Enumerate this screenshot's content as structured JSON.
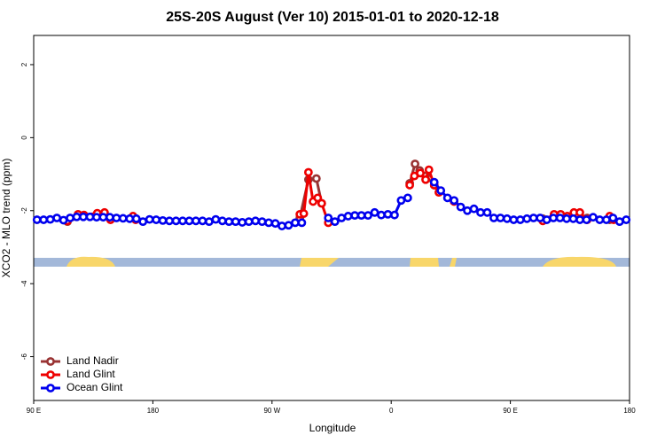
{
  "chart_data": {
    "type": "line",
    "title": "25S-20S August (Ver 10)   2015-01-01 to 2020-12-18",
    "x_label": "Longitude",
    "y_label": "XCO2 - MLO trend (ppm)",
    "xlim": [
      90,
      540
    ],
    "xticks": [
      {
        "value": 90,
        "label": "90 E"
      },
      180,
      {
        "value": 270,
        "label": "90 W"
      },
      {
        "value": 360,
        "label": "0"
      },
      {
        "value": 450,
        "label": "90 E"
      },
      {
        "value": 540,
        "label": "180"
      }
    ],
    "ylim": [
      -7.2,
      2.8
    ],
    "yticks": [
      2,
      0,
      -2,
      -4,
      -6
    ],
    "legend": "bottomleft",
    "series": [
      {
        "name": "Land Nadir",
        "color": "#993333",
        "x": [
          115.5,
          128,
          148,
          null,
          291,
          297.5,
          303.5,
          307.5,
          null,
          374,
          378,
          381.5,
          386,
          392.5,
          null,
          474.5,
          483,
          508,
          525
        ],
        "values": [
          -2.3,
          -2.15,
          -2.2,
          null,
          -2.2,
          -1.15,
          -1.12,
          -1.8,
          null,
          -1.25,
          -0.72,
          -0.9,
          -1.05,
          -1.3,
          null,
          -2.22,
          -2.15,
          -2.2,
          -2.25
        ]
      },
      {
        "name": "Land Glint",
        "color": "#ee0000",
        "x": [
          115.5,
          123.5,
          128,
          138,
          143.5,
          148,
          null,
          165,
          167,
          null,
          291,
          294,
          297.5,
          301,
          304.5,
          307.5,
          312.5,
          null,
          374,
          377.5,
          382,
          386,
          388.5,
          392.5,
          396,
          null,
          407.5,
          null,
          474.5,
          483,
          488,
          493,
          498,
          502.5,
          508,
          null,
          525,
          528
        ],
        "values": [
          -2.28,
          -2.1,
          -2.12,
          -2.07,
          -2.05,
          -2.25,
          null,
          -2.15,
          -2.25,
          null,
          -2.1,
          -2.08,
          -0.95,
          -1.75,
          -1.65,
          -1.8,
          -2.33,
          null,
          -1.3,
          -1.05,
          -0.97,
          -1.15,
          -0.88,
          -1.3,
          -1.5,
          null,
          -1.75,
          null,
          -2.28,
          -2.1,
          -2.1,
          -2.15,
          -2.05,
          -2.05,
          -2.25,
          null,
          -2.15,
          -2.25
        ]
      },
      {
        "name": "Ocean Glint",
        "color": "#0000ee",
        "x": [
          92.5,
          97.5,
          102.5,
          107.5,
          112.5,
          117.5,
          122.5,
          127.5,
          132.5,
          137.5,
          142.5,
          147.5,
          152.5,
          157.5,
          162.5,
          167.5,
          172.5,
          177.5,
          182.5,
          187.5,
          192.5,
          197.5,
          202.5,
          207.5,
          212.5,
          217.5,
          222.5,
          227.5,
          232.5,
          237.5,
          242.5,
          247.5,
          252.5,
          257.5,
          262.5,
          267.5,
          272.5,
          277.5,
          282.5,
          287.5,
          292.5,
          null,
          null,
          null,
          312.5,
          317.5,
          322.5,
          327.5,
          332.5,
          337.5,
          342.5,
          347.5,
          352.5,
          357.5,
          362.5,
          367.5,
          372.5,
          null,
          null,
          null,
          392.5,
          397.5,
          402.5,
          407.5,
          412.5,
          417.5,
          422.5,
          427.5,
          432.5,
          437.5,
          442.5,
          447.5,
          452.5,
          457.5,
          462.5,
          467.5,
          472.5,
          477.5,
          482.5,
          487.5,
          492.5,
          497.5,
          502.5,
          507.5,
          512.5,
          517.5,
          522.5,
          527.5,
          532.5,
          537.5
        ],
        "values": [
          -2.25,
          -2.25,
          -2.24,
          -2.2,
          -2.26,
          -2.2,
          -2.17,
          -2.17,
          -2.17,
          -2.18,
          -2.18,
          -2.18,
          -2.2,
          -2.21,
          -2.22,
          -2.22,
          -2.3,
          -2.24,
          -2.25,
          -2.27,
          -2.28,
          -2.28,
          -2.28,
          -2.28,
          -2.28,
          -2.28,
          -2.3,
          -2.24,
          -2.28,
          -2.3,
          -2.3,
          -2.32,
          -2.3,
          -2.28,
          -2.3,
          -2.33,
          -2.35,
          -2.42,
          -2.4,
          -2.33,
          -2.33,
          null,
          null,
          null,
          -2.2,
          -2.3,
          -2.2,
          -2.15,
          -2.13,
          -2.13,
          -2.13,
          -2.05,
          -2.12,
          -2.1,
          -2.12,
          -1.72,
          -1.65,
          null,
          null,
          null,
          -1.22,
          -1.45,
          -1.65,
          -1.72,
          -1.9,
          -2.0,
          -1.95,
          -2.05,
          -2.05,
          -2.2,
          -2.2,
          -2.22,
          -2.25,
          -2.25,
          -2.22,
          -2.2,
          -2.2,
          -2.25,
          -2.2,
          -2.2,
          -2.22,
          -2.22,
          -2.25,
          -2.25,
          -2.18,
          -2.25,
          -2.25,
          -2.2,
          -2.3,
          -2.25
        ]
      }
    ]
  }
}
